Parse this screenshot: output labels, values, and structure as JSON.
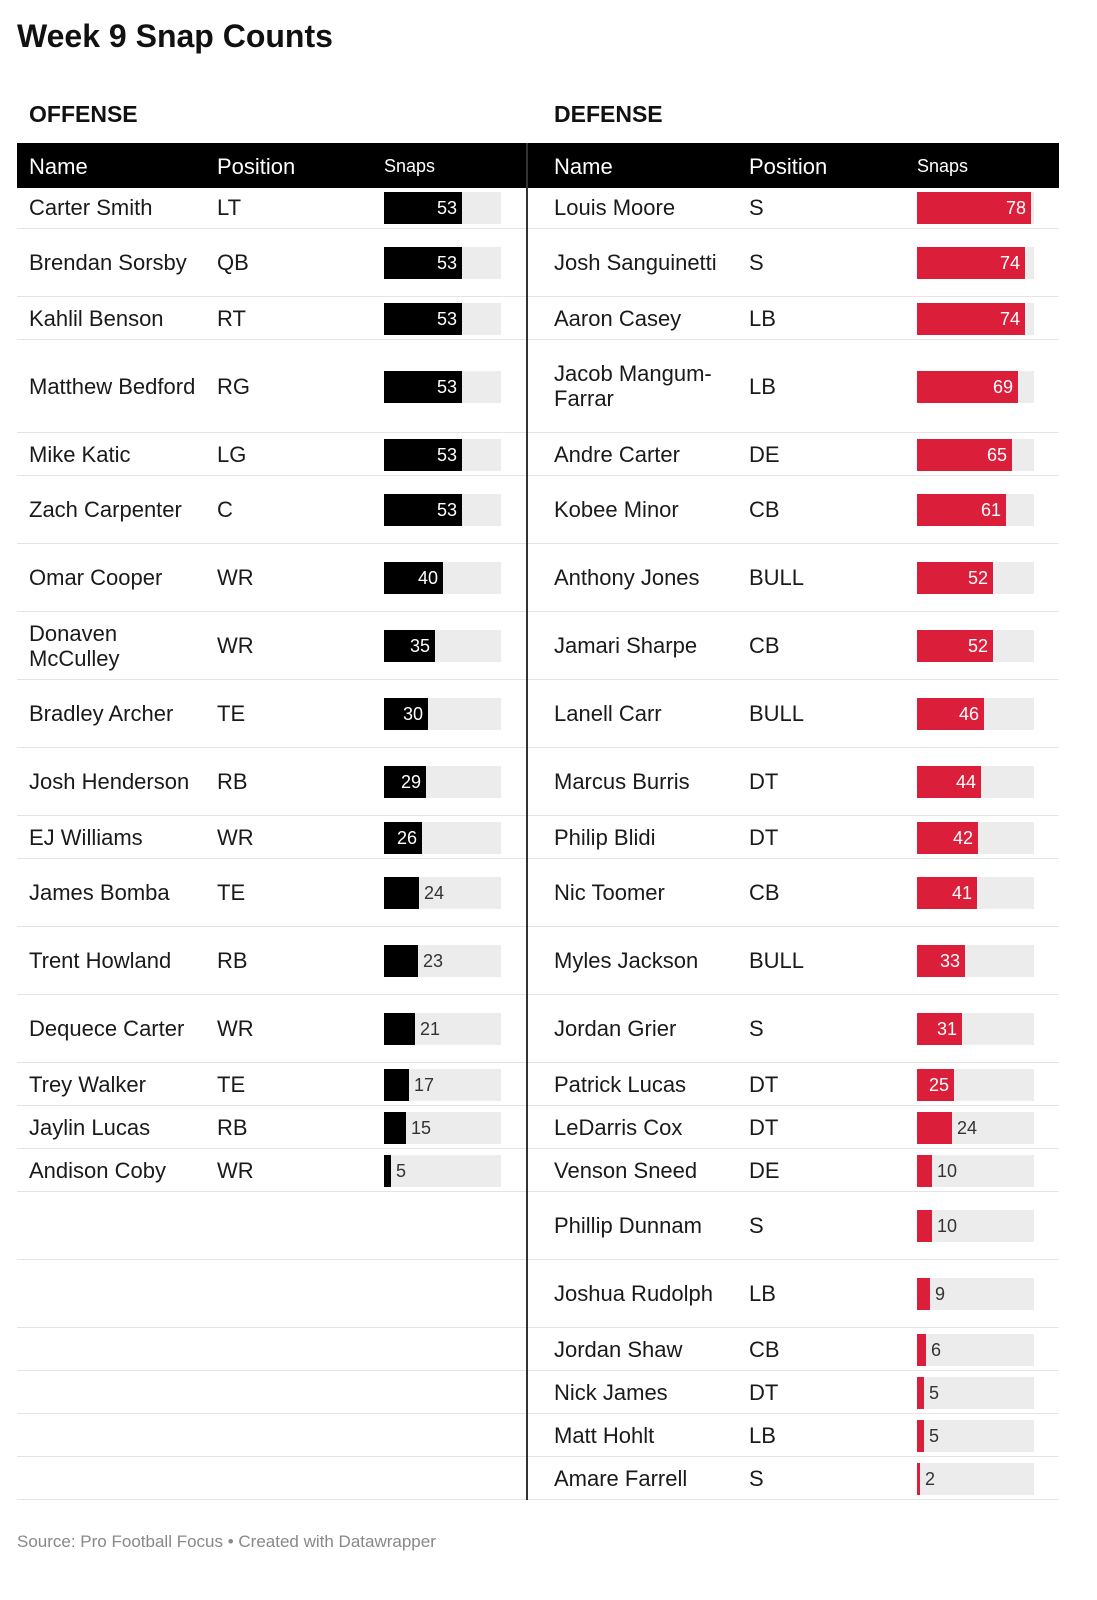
{
  "title": "Week 9 Snap Counts",
  "footer": "Source: Pro Football Focus • Created with Datawrapper",
  "colors": {
    "offense_bar": "#000000",
    "defense_bar": "#db1e3a",
    "track": "#ececec",
    "header_bg": "#000000"
  },
  "chart_data": {
    "type": "table",
    "title": "Week 9 Snap Counts",
    "bar_max": 80,
    "columns": [
      "Name",
      "Position",
      "Snaps"
    ],
    "tables": [
      {
        "name": "OFFENSE",
        "rows": [
          {
            "name": "Carter Smith",
            "position": "LT",
            "snaps": 53
          },
          {
            "name": "Brendan Sorsby",
            "position": "QB",
            "snaps": 53
          },
          {
            "name": "Kahlil Benson",
            "position": "RT",
            "snaps": 53
          },
          {
            "name": "Matthew Bedford",
            "position": "RG",
            "snaps": 53
          },
          {
            "name": "Mike Katic",
            "position": "LG",
            "snaps": 53
          },
          {
            "name": "Zach Carpenter",
            "position": "C",
            "snaps": 53
          },
          {
            "name": "Omar Cooper",
            "position": "WR",
            "snaps": 40
          },
          {
            "name": "Donaven McCulley",
            "position": "WR",
            "snaps": 35
          },
          {
            "name": "Bradley Archer",
            "position": "TE",
            "snaps": 30
          },
          {
            "name": "Josh Henderson",
            "position": "RB",
            "snaps": 29
          },
          {
            "name": "EJ Williams",
            "position": "WR",
            "snaps": 26
          },
          {
            "name": "James Bomba",
            "position": "TE",
            "snaps": 24
          },
          {
            "name": "Trent Howland",
            "position": "RB",
            "snaps": 23
          },
          {
            "name": "Dequece Carter",
            "position": "WR",
            "snaps": 21
          },
          {
            "name": "Trey Walker",
            "position": "TE",
            "snaps": 17
          },
          {
            "name": "Jaylin Lucas",
            "position": "RB",
            "snaps": 15
          },
          {
            "name": "Andison Coby",
            "position": "WR",
            "snaps": 5
          }
        ]
      },
      {
        "name": "DEFENSE",
        "rows": [
          {
            "name": "Louis Moore",
            "position": "S",
            "snaps": 78
          },
          {
            "name": "Josh Sanguinetti",
            "position": "S",
            "snaps": 74
          },
          {
            "name": "Aaron Casey",
            "position": "LB",
            "snaps": 74
          },
          {
            "name": "Jacob Mangum-Farrar",
            "position": "LB",
            "snaps": 69
          },
          {
            "name": "Andre Carter",
            "position": "DE",
            "snaps": 65
          },
          {
            "name": "Kobee Minor",
            "position": "CB",
            "snaps": 61
          },
          {
            "name": "Anthony Jones",
            "position": "BULL",
            "snaps": 52
          },
          {
            "name": "Jamari Sharpe",
            "position": "CB",
            "snaps": 52
          },
          {
            "name": "Lanell Carr",
            "position": "BULL",
            "snaps": 46
          },
          {
            "name": "Marcus Burris",
            "position": "DT",
            "snaps": 44
          },
          {
            "name": "Philip Blidi",
            "position": "DT",
            "snaps": 42
          },
          {
            "name": "Nic Toomer",
            "position": "CB",
            "snaps": 41
          },
          {
            "name": "Myles Jackson",
            "position": "BULL",
            "snaps": 33
          },
          {
            "name": "Jordan Grier",
            "position": "S",
            "snaps": 31
          },
          {
            "name": "Patrick Lucas",
            "position": "DT",
            "snaps": 25
          },
          {
            "name": "LeDarris Cox",
            "position": "DT",
            "snaps": 24
          },
          {
            "name": "Venson Sneed",
            "position": "DE",
            "snaps": 10
          },
          {
            "name": "Phillip Dunnam",
            "position": "S",
            "snaps": 10
          },
          {
            "name": "Joshua Rudolph",
            "position": "LB",
            "snaps": 9
          },
          {
            "name": "Jordan Shaw",
            "position": "CB",
            "snaps": 6
          },
          {
            "name": "Nick James",
            "position": "DT",
            "snaps": 5
          },
          {
            "name": "Matt Hohlt",
            "position": "LB",
            "snaps": 5
          },
          {
            "name": "Amare Farrell",
            "position": "S",
            "snaps": 2
          }
        ]
      }
    ]
  }
}
